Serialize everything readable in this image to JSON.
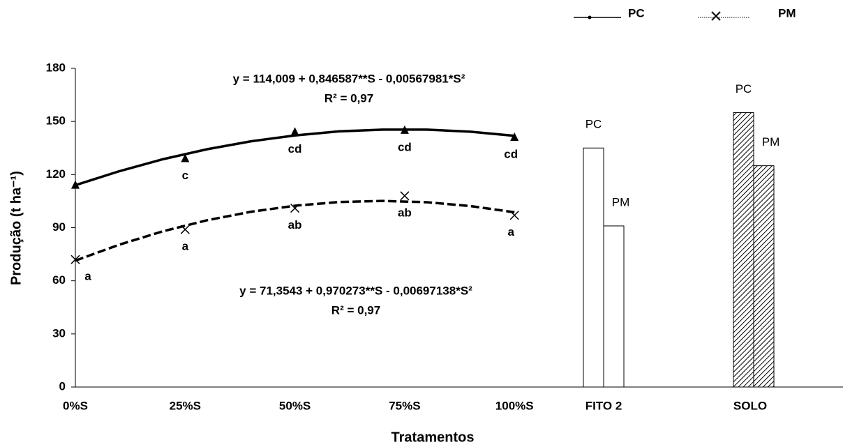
{
  "chart_data": {
    "type": "line-bar",
    "xlabel": "Tratamentos",
    "ylabel": "Produção (t ha⁻¹)",
    "categories": [
      "0%S",
      "25%S",
      "50%S",
      "75%S",
      "100%S",
      "FITO 2",
      "SOLO"
    ],
    "ylim": [
      0,
      180
    ],
    "yticks": [
      0,
      30,
      60,
      90,
      120,
      150,
      180
    ],
    "series": [
      {
        "name": "PC",
        "color": "#000000",
        "values": [
          114,
          129,
          144,
          145,
          141,
          135,
          155
        ],
        "point_labels": [
          null,
          "c",
          "cd",
          "cd",
          "cd",
          null,
          null
        ],
        "equation": "y = 114,009 + 0,846587**S - 0,00567981*S²",
        "r2": "R² = 0,97",
        "trend": {
          "S": [
            0,
            10,
            20,
            30,
            40,
            50,
            60,
            70,
            80,
            90,
            100
          ],
          "values": [
            114.0,
            121.9,
            128.7,
            134.3,
            138.8,
            142.1,
            144.4,
            145.4,
            145.4,
            144.2,
            141.9
          ]
        }
      },
      {
        "name": "PM",
        "color": "#000000",
        "values": [
          72,
          89,
          101,
          108,
          97,
          91,
          125
        ],
        "point_labels": [
          "a",
          "a",
          "ab",
          "ab",
          "a",
          null,
          null
        ],
        "equation": "y = 71,3543 + 0,970273**S - 0,00697138*S²",
        "r2": "R² = 0,97",
        "trend": {
          "S": [
            0,
            10,
            20,
            30,
            40,
            50,
            60,
            70,
            80,
            90,
            100
          ],
          "values": [
            71.4,
            80.4,
            88.0,
            94.2,
            99.0,
            102.4,
            104.5,
            105.1,
            104.4,
            102.2,
            98.7
          ]
        }
      }
    ]
  }
}
